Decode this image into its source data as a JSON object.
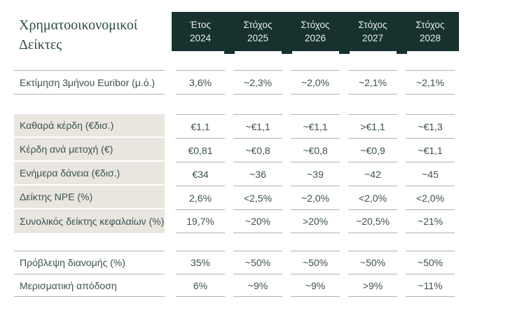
{
  "title": {
    "line1": "Χρηματοοικονομικοί",
    "line2": "Δείκτες"
  },
  "colors": {
    "header_bg": "#17322e",
    "header_text": "#e7efeb",
    "title_color": "#2c4c41",
    "text_color": "#3d5250",
    "row_highlight_bg": "#e8e6df",
    "separator_line": "#b5b2a9"
  },
  "table": {
    "columns": [
      {
        "line1": "Έτος",
        "line2": "2024"
      },
      {
        "line1": "Στόχος",
        "line2": "2025"
      },
      {
        "line1": "Στόχος",
        "line2": "2026"
      },
      {
        "line1": "Στόχος",
        "line2": "2027"
      },
      {
        "line1": "Στόχος",
        "line2": "2028"
      }
    ],
    "groups": [
      {
        "rows": [
          {
            "label": "Εκτίμηση 3μήνου Euribor (μ.ό.)",
            "values": [
              "3,6%",
              "~2,3%",
              "~2,0%",
              "~2,1%",
              "~2,1%"
            ]
          }
        ]
      },
      {
        "rows": [
          {
            "label": "Καθαρά κέρδη (€δισ.)",
            "values": [
              "€1,1",
              "~€1,1",
              "~€1,1",
              ">€1,1",
              "~€1,3"
            ]
          },
          {
            "label": "Κέρδη ανά μετοχή (€)",
            "values": [
              "€0,81",
              "~€0,8",
              "~€0,8",
              "~€0,9",
              "~€1,1"
            ]
          },
          {
            "label": "Ενήμερα δάνεια (€δισ.)",
            "values": [
              "€34",
              "~36",
              "~39",
              "~42",
              "~45"
            ]
          },
          {
            "label": "Δείκτης NPE (%)",
            "values": [
              "2,6%",
              "<2,5%",
              "~2,0%",
              "<2,0%",
              "<2,0%"
            ]
          },
          {
            "label": "Συνολικός δείκτης κεφαλαίων (%)",
            "values": [
              "19,7%",
              "~20%",
              ">20%",
              "~20,5%",
              "~21%"
            ]
          }
        ]
      },
      {
        "rows": [
          {
            "label": "Πρόβλεψη διανομής (%)",
            "values": [
              "35%",
              "~50%",
              "~50%",
              "~50%",
              "~50%"
            ]
          },
          {
            "label": "Μερισματική απόδοση",
            "values": [
              "6%",
              "~9%",
              "~9%",
              ">9%",
              "~11%"
            ]
          }
        ]
      }
    ]
  }
}
